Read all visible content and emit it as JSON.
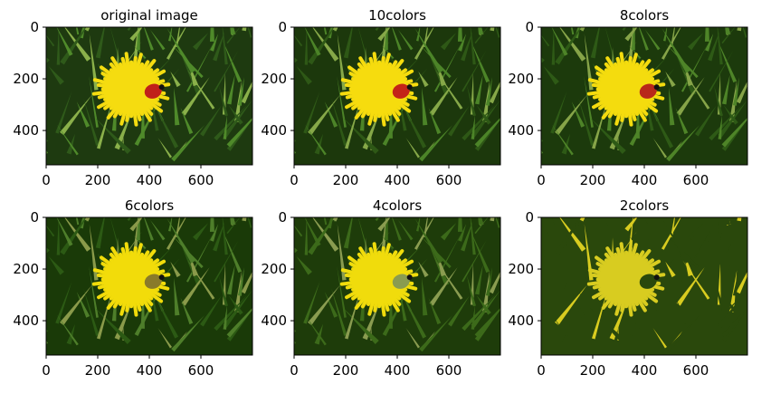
{
  "chart_data": [
    {
      "type": "image",
      "title": "original image",
      "xlim": [
        0,
        800
      ],
      "ylim": [
        533,
        0
      ],
      "xticks": [
        0,
        200,
        400,
        600
      ],
      "yticks": [
        0,
        200,
        400
      ],
      "palette": [
        "#1e3a10",
        "#2f5a1a",
        "#4f8a2a",
        "#8ab04a",
        "#f5dc10",
        "#c0201a"
      ]
    },
    {
      "type": "image",
      "title": "10colors",
      "xlim": [
        0,
        800
      ],
      "ylim": [
        533,
        0
      ],
      "xticks": [
        0,
        200,
        400,
        600
      ],
      "yticks": [
        0,
        200,
        400
      ],
      "palette": [
        "#1c380c",
        "#2e5816",
        "#4c8428",
        "#86a848",
        "#f6dc0e",
        "#c42418"
      ]
    },
    {
      "type": "image",
      "title": "8colors",
      "xlim": [
        0,
        800
      ],
      "ylim": [
        533,
        0
      ],
      "xticks": [
        0,
        200,
        400,
        600
      ],
      "yticks": [
        0,
        200,
        400
      ],
      "palette": [
        "#1c3a0c",
        "#2e5a16",
        "#4e8428",
        "#86a448",
        "#f4dc0e",
        "#b8281a"
      ]
    },
    {
      "type": "image",
      "title": "6colors",
      "xlim": [
        0,
        800
      ],
      "ylim": [
        533,
        0
      ],
      "xticks": [
        0,
        200,
        400,
        600
      ],
      "yticks": [
        0,
        200,
        400
      ],
      "palette": [
        "#1a3a08",
        "#2c5a14",
        "#4e7e2a",
        "#8a9a4a",
        "#f2dc0a",
        "#8a7a2a"
      ]
    },
    {
      "type": "image",
      "title": "4colors",
      "xlim": [
        0,
        800
      ],
      "ylim": [
        533,
        0
      ],
      "xticks": [
        0,
        200,
        400,
        600
      ],
      "yticks": [
        0,
        200,
        400
      ],
      "palette": [
        "#1e3c0a",
        "#3c6a1a",
        "#3c6a1a",
        "#8a9c50",
        "#f0dc0c",
        "#8a9c50"
      ]
    },
    {
      "type": "image",
      "title": "2colors",
      "xlim": [
        0,
        800
      ],
      "ylim": [
        533,
        0
      ],
      "xticks": [
        0,
        200,
        400,
        600
      ],
      "yticks": [
        0,
        200,
        400
      ],
      "palette": [
        "#2a480c",
        "#2a480c",
        "#2a480c",
        "#d8cc20",
        "#d8cc20",
        "#2a480c"
      ]
    }
  ]
}
